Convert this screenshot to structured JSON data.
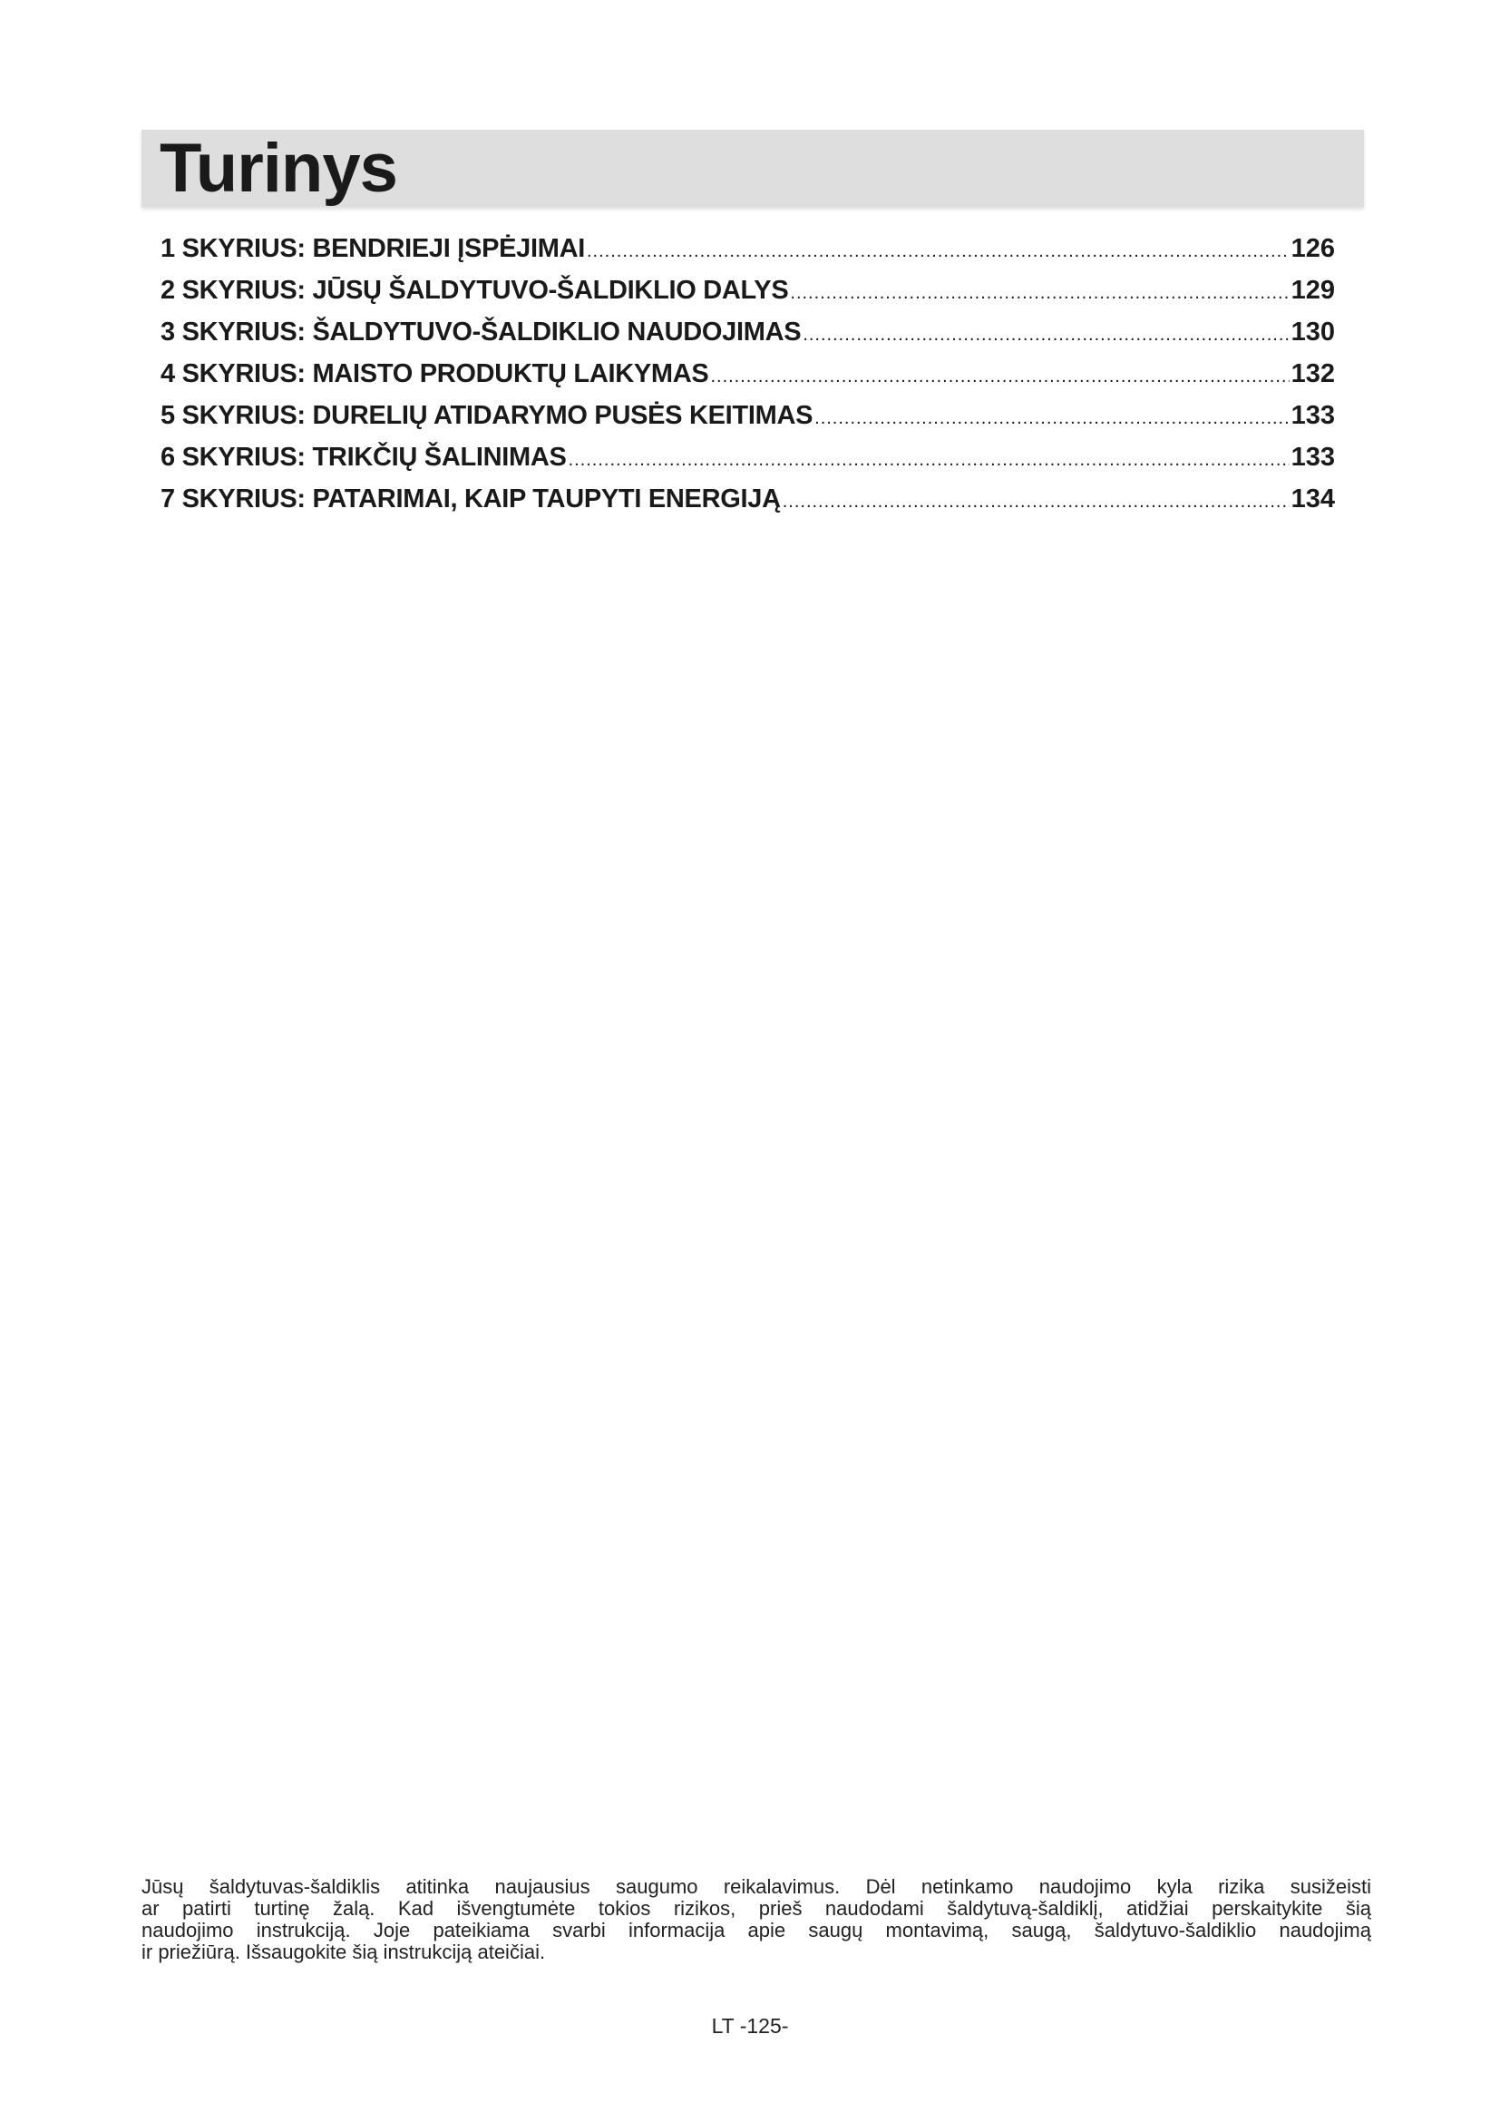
{
  "title": "Turinys",
  "toc": [
    {
      "label": "1 SKYRIUS: BENDRIEJI ĮSPĖJIMAI",
      "page": "126"
    },
    {
      "label": "2 SKYRIUS: JŪSŲ ŠALDYTUVO-ŠALDIKLIO DALYS",
      "page": "129"
    },
    {
      "label": "3 SKYRIUS: ŠALDYTUVO-ŠALDIKLIO NAUDOJIMAS",
      "page": "130"
    },
    {
      "label": "4 SKYRIUS: MAISTO PRODUKTŲ LAIKYMAS",
      "page": "132"
    },
    {
      "label": "5 SKYRIUS: DURELIŲ ATIDARYMO PUSĖS KEITIMAS",
      "page": "133"
    },
    {
      "label": "6 SKYRIUS: TRIKČIŲ ŠALINIMAS",
      "page": "133"
    },
    {
      "label": "7 SKYRIUS: PATARIMAI, KAIP TAUPYTI ENERGIJĄ",
      "page": "134"
    }
  ],
  "intro_lines": [
    "Jūsų šaldytuvas-šaldiklis atitinka naujausius saugumo reikalavimus. Dėl netinkamo naudojimo kyla rizika susižeisti",
    "ar patirti turtinę žalą. Kad išvengtumėte tokios rizikos, prieš naudodami šaldytuvą-šaldiklį, atidžiai perskaitykite šią",
    "naudojimo instrukciją. Joje pateikiama svarbi informacija apie saugų montavimą, saugą, šaldytuvo-šaldiklio naudojimą",
    "ir priežiūrą. Išsaugokite šią instrukciją ateičiai."
  ],
  "page_number": "LT -125-"
}
